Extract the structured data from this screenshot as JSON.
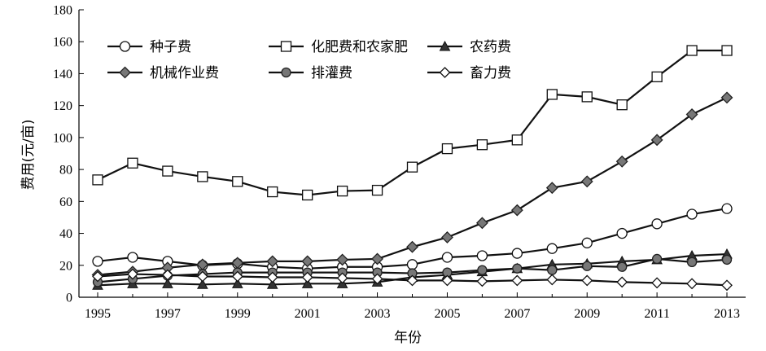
{
  "chart_data": {
    "type": "line",
    "title": "",
    "xlabel": "年份",
    "ylabel": "费用(元/亩)",
    "xlim": [
      1995,
      2013
    ],
    "ylim": [
      0,
      180
    ],
    "x_ticks": [
      "1995",
      "1997",
      "1999",
      "2001",
      "2003",
      "2005",
      "2007",
      "2009",
      "2011",
      "2013"
    ],
    "y_ticks": [
      "0",
      "20",
      "40",
      "60",
      "80",
      "100",
      "120",
      "140",
      "160",
      "180"
    ],
    "grid": false,
    "legend_position": "top-left",
    "x": [
      1995,
      1996,
      1997,
      1998,
      1999,
      2000,
      2001,
      2002,
      2003,
      2004,
      2005,
      2006,
      2007,
      2008,
      2009,
      2010,
      2011,
      2012,
      2013
    ],
    "series": [
      {
        "name": "种子费",
        "marker": "circle-open",
        "values": [
          22.5,
          25,
          22.5,
          20,
          21,
          19,
          18,
          19,
          19,
          20.5,
          25,
          26,
          27.5,
          30.5,
          34,
          40,
          46,
          52,
          55.5
        ]
      },
      {
        "name": "化肥费和农家肥",
        "marker": "square-open",
        "values": [
          73.5,
          84,
          79,
          75.5,
          72.5,
          66,
          64,
          66.5,
          67,
          81.5,
          93,
          95.5,
          98.5,
          127,
          125.5,
          120.5,
          138,
          154.5,
          154.5
        ]
      },
      {
        "name": "农药费",
        "marker": "triangle-filled",
        "values": [
          7.5,
          8.5,
          8.5,
          8,
          8.5,
          8,
          8.5,
          8.5,
          9.5,
          12.5,
          14,
          16,
          18,
          20.5,
          21,
          22.5,
          23.5,
          26,
          27
        ]
      },
      {
        "name": "机械作业费",
        "marker": "diamond-filled",
        "values": [
          14,
          16,
          18.5,
          20.5,
          21.5,
          22.5,
          22.5,
          23.5,
          24,
          31.5,
          37.5,
          46.5,
          54.5,
          68.5,
          72.5,
          85,
          98.5,
          114.5,
          125
        ]
      },
      {
        "name": "排灌费",
        "marker": "circle-filled",
        "values": [
          9.5,
          11.5,
          13.5,
          14.5,
          15.5,
          15.5,
          15.5,
          15.5,
          15.5,
          15,
          15.5,
          17,
          18,
          17,
          19.5,
          19,
          24,
          22,
          23.5
        ]
      },
      {
        "name": "畜力费",
        "marker": "diamond-open",
        "values": [
          13,
          14.5,
          14,
          13,
          13,
          12.5,
          12.5,
          12,
          11.5,
          10.5,
          10.5,
          10,
          10.5,
          11,
          10.5,
          9.5,
          9,
          8.5,
          7.5
        ]
      }
    ]
  }
}
